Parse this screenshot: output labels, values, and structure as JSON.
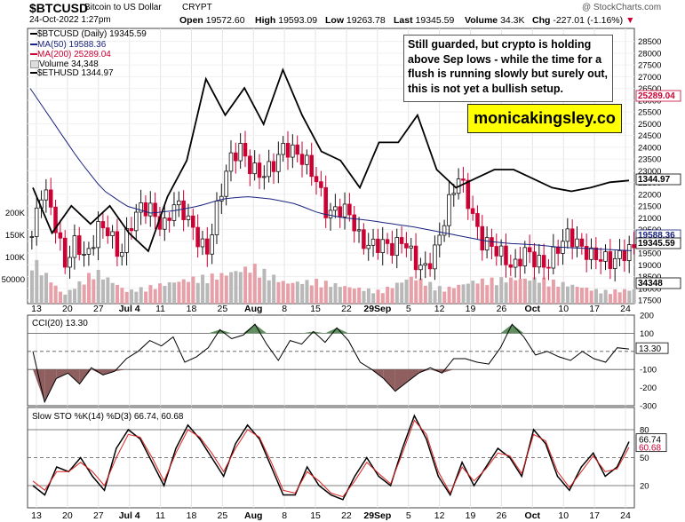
{
  "header": {
    "symbol": "$BTCUSD",
    "description": "Bitcoin to US Dollar",
    "exchange": "CRYPT",
    "watermark": "@ StockCharts.com",
    "date": "24-Oct-2022 1:27pm",
    "ohlc": [
      {
        "label": "Open",
        "value": "19572.60"
      },
      {
        "label": "High",
        "value": "19593.09"
      },
      {
        "label": "Low",
        "value": "19263.78"
      },
      {
        "label": "Last",
        "value": "19345.59"
      },
      {
        "label": "Volume",
        "value": "34.3K"
      },
      {
        "label": "Chg",
        "value": "-227.01 (-1.16%)"
      }
    ],
    "chg_arrow": "▼"
  },
  "legend": {
    "main": "$BTCUSD (Daily) 19345.59",
    "ma50": "MA(50) 19588.36",
    "ma200": "MA(200) 25289.04",
    "volume": "Volume 34,348",
    "ethusd": "$ETHUSD 1344.97"
  },
  "annotation": {
    "text": "Still guarded, but crypto is holding above Sep lows - while the time for a flush is running slowly but surely out, this is not yet a bullish setup.",
    "brand": "monicakingsley.co"
  },
  "colors": {
    "up": "#111111",
    "down": "#cc0033",
    "ma50": "#1a237e",
    "ma200": "#cc0033",
    "eth": "#000000",
    "vol_down": "#e8a0a8",
    "vol_up": "#b8b8b8",
    "cci_pos": "#5f8f5f",
    "cci_neg": "#8f5f5f",
    "sto_d": "#dd2222",
    "sto_k": "#000000"
  },
  "chart_data": [
    {
      "type": "candlestick",
      "title": "$BTCUSD (Daily)",
      "xlabel": "",
      "ylabel": "",
      "ylim": [
        17500,
        28750
      ],
      "yticks": [
        17500,
        18000,
        18500,
        19000,
        19500,
        20000,
        20500,
        21000,
        21500,
        22000,
        22500,
        23000,
        23500,
        24000,
        24500,
        25000,
        25500,
        26000,
        26500,
        27000,
        27500,
        28000,
        28500
      ],
      "x_date_labels": [
        "13",
        "20",
        "27",
        "Jul 4",
        "11",
        "18",
        "25",
        "Aug",
        "8",
        "15",
        "22",
        "29Sep",
        "5",
        "12",
        "19",
        "26",
        "Oct",
        "10",
        "17",
        "24"
      ],
      "series_keypoints": [
        {
          "name": "BTCUSD close",
          "points": [
            20200,
            22400,
            21000,
            19000,
            20000,
            19200,
            20600,
            20500,
            19300,
            20700,
            21500,
            21300,
            20500,
            21600,
            21200,
            20200,
            19500,
            21600,
            23400,
            24000,
            23100,
            22800,
            23200,
            24000,
            23800,
            23400,
            22600,
            21100,
            21400,
            21200,
            20000,
            19800,
            19900,
            19700,
            20100,
            19100,
            18800,
            19800,
            21500,
            22800,
            21500,
            20000,
            19800,
            19400,
            18800,
            19600,
            19200,
            18900,
            19700,
            20300,
            19800,
            19400,
            19300,
            19100,
            19500,
            19700
          ]
        },
        {
          "name": "MA(50)",
          "points": [
            26500,
            25000,
            23500,
            22200,
            21500,
            21200,
            21300,
            21500,
            21800,
            21900,
            21800,
            21600,
            21200,
            21000,
            20900,
            20750,
            20600,
            20400,
            20200,
            20000,
            19900,
            19850,
            19750,
            19700,
            19650,
            19600
          ]
        },
        {
          "name": "ETHUSD overlay",
          "points": [
            1300,
            1050,
            1200,
            1100,
            1200,
            1050,
            950,
            1250,
            1450,
            1900,
            1700,
            1850,
            1650,
            1950,
            1700,
            1500,
            1450,
            1300,
            1550,
            1550,
            1700,
            1400,
            1300,
            1350,
            1400,
            1400,
            1350,
            1300,
            1280,
            1300,
            1330,
            1340
          ]
        },
        {
          "name": "Volume",
          "points": [
            110000,
            20000,
            80000,
            30000,
            45000,
            60000,
            70000,
            90000,
            50000,
            55000,
            40000,
            30000,
            65000,
            35000,
            55000,
            60000,
            60000,
            45000,
            30000,
            34348
          ]
        }
      ],
      "price_labels": {
        "ma200": "25289.04",
        "eth": "1344.97",
        "ma50": "19588.36",
        "last": "19345.59",
        "volume": "34348"
      },
      "volume_axis": [
        "200K",
        "150K",
        "100K",
        "50000"
      ]
    },
    {
      "type": "line",
      "title": "CCI(20) 13.30",
      "ylim": [
        -300,
        200
      ],
      "yticks": [
        200,
        100,
        -100,
        -200,
        -300
      ],
      "levels": [
        100,
        0,
        -100
      ],
      "last_label": "13.30",
      "x": [
        0,
        1,
        2,
        3,
        4,
        5,
        6,
        7,
        8,
        9,
        10,
        11,
        12,
        13,
        14,
        15,
        16,
        17,
        18,
        19,
        20,
        21,
        22,
        23,
        24,
        25,
        26,
        27,
        28,
        29,
        30,
        31,
        32,
        33,
        34,
        35,
        36,
        37,
        38,
        39,
        40,
        41,
        42,
        43,
        44,
        45,
        46,
        47,
        48,
        49,
        50,
        51
      ],
      "values": [
        0,
        -280,
        -150,
        -120,
        -180,
        -90,
        -130,
        -110,
        -40,
        0,
        60,
        30,
        80,
        -60,
        -30,
        20,
        120,
        70,
        90,
        150,
        40,
        -50,
        60,
        40,
        110,
        50,
        130,
        60,
        -60,
        -100,
        -150,
        -220,
        -170,
        -120,
        -90,
        -120,
        -40,
        -40,
        -60,
        -70,
        20,
        150,
        80,
        -20,
        0,
        -30,
        -50,
        0,
        -40,
        -60,
        20,
        13
      ]
    },
    {
      "type": "line",
      "title": "Slow STO %K(14) %D(3) 66.74, 60.68",
      "ylim": [
        0,
        100
      ],
      "yticks": [
        80,
        50,
        20
      ],
      "levels": [
        80,
        50,
        20
      ],
      "last_labels": [
        "66.74",
        "60.68"
      ],
      "series": [
        {
          "name": "%K(14)",
          "values": [
            20,
            10,
            40,
            35,
            50,
            30,
            15,
            60,
            80,
            70,
            45,
            20,
            60,
            85,
            70,
            50,
            30,
            65,
            85,
            70,
            40,
            10,
            10,
            40,
            20,
            10,
            5,
            30,
            50,
            30,
            20,
            60,
            95,
            70,
            30,
            10,
            45,
            20,
            40,
            60,
            50,
            30,
            80,
            65,
            30,
            15,
            40,
            55,
            30,
            40,
            67
          ]
        },
        {
          "name": "%D(3)",
          "values": [
            25,
            15,
            35,
            35,
            45,
            35,
            20,
            50,
            75,
            72,
            50,
            25,
            55,
            80,
            72,
            55,
            35,
            60,
            80,
            72,
            45,
            15,
            12,
            35,
            25,
            12,
            8,
            25,
            45,
            33,
            22,
            55,
            90,
            75,
            35,
            12,
            40,
            25,
            38,
            55,
            52,
            33,
            75,
            68,
            35,
            18,
            35,
            52,
            35,
            38,
            61
          ]
        }
      ]
    }
  ]
}
